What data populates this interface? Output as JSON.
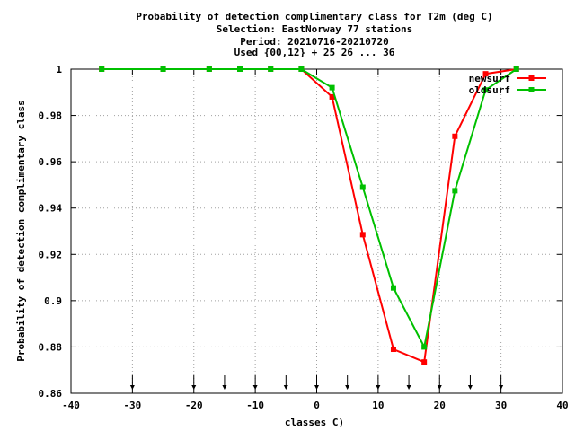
{
  "chart_data": {
    "type": "line",
    "title_lines": [
      "Probability of detection complimentary class  for T2m (deg C)",
      "Selection: EastNorway     77 stations",
      "Period: 20210716-20210720",
      "Used {00,12} + 25 26 ... 36"
    ],
    "xlabel": "classes C)",
    "ylabel": "Probability of detection complimentary class",
    "xlim": [
      -40,
      40
    ],
    "ylim": [
      0.86,
      1.0
    ],
    "xticks": [
      -40,
      -30,
      -20,
      -10,
      0,
      10,
      20,
      30,
      40
    ],
    "yticks": [
      0.86,
      0.88,
      0.9,
      0.92,
      0.94,
      0.96,
      0.98,
      1.0
    ],
    "ytick_labels": [
      "0.86",
      "0.88",
      "0.9",
      "0.92",
      "0.94",
      "0.96",
      "0.98",
      "1"
    ],
    "grid": true,
    "legend_position": "top-right",
    "class_limit_arrows": [
      -30,
      -20,
      -15,
      -10,
      -5,
      0,
      5,
      10,
      15,
      20,
      25,
      30
    ],
    "series": [
      {
        "name": "newsurf",
        "color": "#ff0000",
        "x": [
          -35,
          -25,
          -17.5,
          -12.5,
          -7.5,
          -2.5,
          2.5,
          7.5,
          12.5,
          17.5,
          22.5,
          27.5,
          32.5
        ],
        "y": [
          1.0,
          1.0,
          1.0,
          1.0,
          1.0,
          1.0,
          0.988,
          0.9285,
          0.879,
          0.8735,
          0.971,
          0.998,
          1.0
        ]
      },
      {
        "name": "oldsurf",
        "color": "#00c000",
        "x": [
          -35,
          -25,
          -17.5,
          -12.5,
          -7.5,
          -2.5,
          2.5,
          7.5,
          12.5,
          17.5,
          22.5,
          27.5,
          32.5
        ],
        "y": [
          1.0,
          1.0,
          1.0,
          1.0,
          1.0,
          1.0,
          0.992,
          0.949,
          0.9055,
          0.88,
          0.9475,
          0.991,
          1.0
        ]
      }
    ]
  }
}
